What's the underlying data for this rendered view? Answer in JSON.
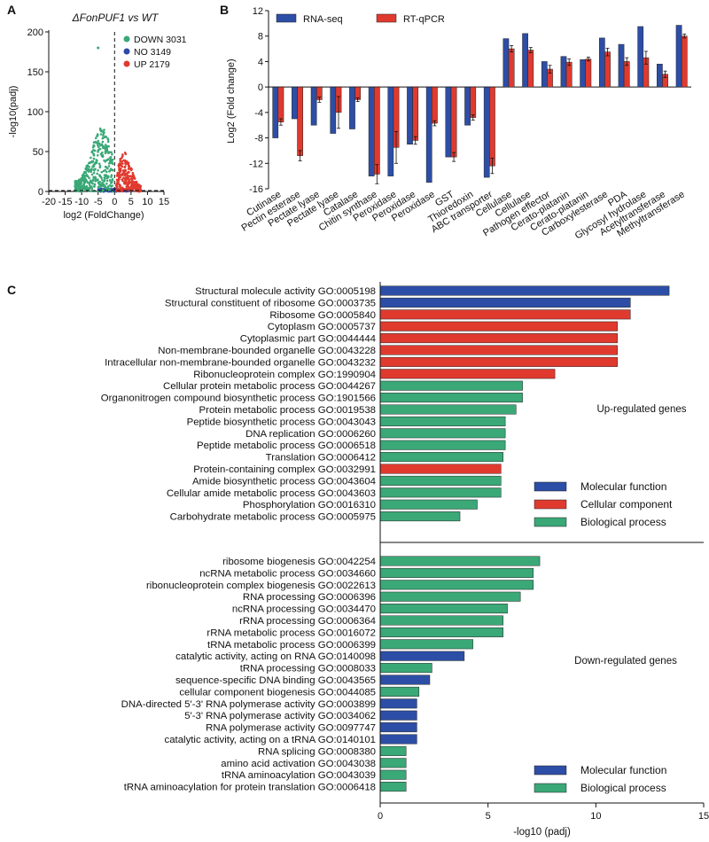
{
  "chart_data": [
    {
      "panel": "A",
      "type": "scatter",
      "title": "ΔFonPUF1 vs WT",
      "xlabel": "log2 (FoldChange)",
      "ylabel": "-log10(padj)",
      "xlim": [
        -20,
        15
      ],
      "ylim": [
        0,
        200
      ],
      "xticks": [
        -20,
        -15,
        -10,
        -5,
        0,
        5,
        10,
        15
      ],
      "yticks": [
        0,
        50,
        100,
        150,
        200
      ],
      "legend": [
        {
          "label": "DOWN 3031",
          "color": "#3aa877"
        },
        {
          "label": "NO 3149",
          "color": "#2d48a8"
        },
        {
          "label": "UP 2179",
          "color": "#e03a2f"
        }
      ],
      "threshold_x": 0,
      "threshold_y": 0
    },
    {
      "panel": "B",
      "type": "bar",
      "ylabel": "Log2 (Fold change)",
      "ylim": [
        -16,
        12
      ],
      "yticks": [
        -16,
        -12,
        -8,
        -4,
        0,
        4,
        8,
        12
      ],
      "categories": [
        "Cutinase",
        "Pectin esterase",
        "Pectate lyase",
        "Pectate lyase",
        "Catalase",
        "Chitin synthase",
        "Peroxidase",
        "Peroxidase",
        "Peroxidase",
        "GST",
        "Thioredoxin",
        "ABC transporter",
        "Cellulase",
        "Cellulase",
        "Pathogen effector",
        "Cerato-platanin",
        "Cerato-platanin",
        "Carboxylesterase",
        "PDA",
        "Glycosyl hydrolase",
        "Acetyltransferase",
        "Methyltransferase"
      ],
      "series": [
        {
          "name": "RNA-seq",
          "color": "#2d4ea6",
          "values": [
            -8,
            -5,
            -6,
            -7.3,
            -6.6,
            -14,
            -14,
            -9,
            -15,
            -11,
            -6,
            -14.2,
            7.6,
            8.4,
            4,
            4.8,
            4.3,
            7.7,
            6.7,
            9.5,
            3.6,
            9.7
          ]
        },
        {
          "name": "RT-qPCR",
          "color": "#e03a2f",
          "values": [
            -5.5,
            -10.8,
            -2,
            -4,
            -2,
            -13.7,
            -9.5,
            -8.4,
            -5.7,
            -11,
            -4.8,
            -12.4,
            6,
            5.8,
            2.8,
            3.9,
            4.4,
            5.5,
            4,
            4.6,
            2,
            8
          ]
        }
      ],
      "errors": [
        0.5,
        0.8,
        0.4,
        2.5,
        0.3,
        1.5,
        2.5,
        0.6,
        0.4,
        0.7,
        0.4,
        1.2,
        0.5,
        0.4,
        0.6,
        0.5,
        0.3,
        0.6,
        0.6,
        1.0,
        0.5,
        0.3
      ]
    },
    {
      "panel": "C",
      "type": "bar",
      "orientation": "horizontal",
      "xlabel": "-log10 (padj)",
      "xlim": [
        0,
        15
      ],
      "xticks": [
        0,
        5,
        10,
        15
      ],
      "groups": [
        {
          "label": "Up-regulated  genes",
          "legend": [
            {
              "label": "Molecular function",
              "color": "#2d4ea6"
            },
            {
              "label": "Cellular component",
              "color": "#e03a2f"
            },
            {
              "label": "Biological process",
              "color": "#3aa877"
            }
          ],
          "items": [
            {
              "label": "Structural molecule activity GO:0005198",
              "value": 13.4,
              "category": "MF"
            },
            {
              "label": "Structural constituent of ribosome GO:0003735",
              "value": 11.6,
              "category": "MF"
            },
            {
              "label": "Ribosome GO:0005840",
              "value": 11.6,
              "category": "CC"
            },
            {
              "label": "Cytoplasm GO:0005737",
              "value": 11.0,
              "category": "CC"
            },
            {
              "label": "Cytoplasmic part GO:0044444",
              "value": 11.0,
              "category": "CC"
            },
            {
              "label": "Non-membrane-bounded  organelle GO:0043228",
              "value": 11.0,
              "category": "CC"
            },
            {
              "label": "Intracellular non-membrane-bounded  organelle GO:0043232",
              "value": 11.0,
              "category": "CC"
            },
            {
              "label": "Ribonucleoprotein complex GO:1990904",
              "value": 8.1,
              "category": "CC"
            },
            {
              "label": "Cellular protein metabolic process GO:0044267",
              "value": 6.6,
              "category": "BP"
            },
            {
              "label": "Organonitrogen  compound biosynthetic process GO:1901566",
              "value": 6.6,
              "category": "BP"
            },
            {
              "label": "Protein metabolic process GO:0019538",
              "value": 6.3,
              "category": "BP"
            },
            {
              "label": "Peptide biosynthetic process GO:0043043",
              "value": 5.8,
              "category": "BP"
            },
            {
              "label": "DNA replication GO:0006260",
              "value": 5.8,
              "category": "BP"
            },
            {
              "label": "Peptide metabolic process GO:0006518",
              "value": 5.8,
              "category": "BP"
            },
            {
              "label": "Translation GO:0006412",
              "value": 5.7,
              "category": "BP"
            },
            {
              "label": "Protein-containing complex GO:0032991",
              "value": 5.6,
              "category": "CC"
            },
            {
              "label": "Amide biosynthetic process GO:0043604",
              "value": 5.6,
              "category": "BP"
            },
            {
              "label": "Cellular amide metabolic process GO:0043603",
              "value": 5.6,
              "category": "BP"
            },
            {
              "label": "Phosphorylation GO:0016310",
              "value": 4.5,
              "category": "BP"
            },
            {
              "label": "Carbohydrate  metabolic process GO:0005975",
              "value": 3.7,
              "category": "BP"
            }
          ]
        },
        {
          "label": "Down-regulated  genes",
          "legend": [
            {
              "label": "Molecular function",
              "color": "#2d4ea6"
            },
            {
              "label": "Biological process",
              "color": "#3aa877"
            }
          ],
          "items": [
            {
              "label": "ribosome biogenesis GO:0042254",
              "value": 7.4,
              "category": "BP"
            },
            {
              "label": "ncRNA metabolic process GO:0034660",
              "value": 7.1,
              "category": "BP"
            },
            {
              "label": "ribonucleoprotein  complex biogenesis GO:0022613",
              "value": 7.1,
              "category": "BP"
            },
            {
              "label": "RNA processing GO:0006396",
              "value": 6.5,
              "category": "BP"
            },
            {
              "label": "ncRNA processing GO:0034470",
              "value": 5.9,
              "category": "BP"
            },
            {
              "label": "rRNA processing GO:0006364",
              "value": 5.7,
              "category": "BP"
            },
            {
              "label": "rRNA metabolic process GO:0016072",
              "value": 5.7,
              "category": "BP"
            },
            {
              "label": "tRNA metabolic process GO:0006399",
              "value": 4.3,
              "category": "BP"
            },
            {
              "label": "catalytic activity, acting on RNA GO:0140098",
              "value": 3.9,
              "category": "MF"
            },
            {
              "label": "tRNA processing GO:0008033",
              "value": 2.4,
              "category": "BP"
            },
            {
              "label": "sequence-specific DNA binding GO:0043565",
              "value": 2.3,
              "category": "MF"
            },
            {
              "label": "cellular component biogenesis GO:0044085",
              "value": 1.8,
              "category": "BP"
            },
            {
              "label": "DNA-directed 5'-3' RNA polymerase activity GO:0003899",
              "value": 1.7,
              "category": "MF"
            },
            {
              "label": "5'-3' RNA polymerase activity GO:0034062",
              "value": 1.7,
              "category": "MF"
            },
            {
              "label": "RNA polymerase activity GO:0097747",
              "value": 1.7,
              "category": "MF"
            },
            {
              "label": "catalytic activity, acting on a tRNA GO:0140101",
              "value": 1.7,
              "category": "MF"
            },
            {
              "label": "RNA splicing GO:0008380",
              "value": 1.2,
              "category": "BP"
            },
            {
              "label": "amino acid activation GO:0043038",
              "value": 1.2,
              "category": "BP"
            },
            {
              "label": "tRNA aminoacylation GO:0043039",
              "value": 1.2,
              "category": "BP"
            },
            {
              "label": "tRNA aminoacylation for protein translation GO:0006418",
              "value": 1.2,
              "category": "BP"
            }
          ]
        }
      ],
      "category_colors": {
        "MF": "#2d4ea6",
        "CC": "#e03a2f",
        "BP": "#3aa877"
      }
    }
  ],
  "panel_labels": [
    "A",
    "B",
    "C"
  ]
}
